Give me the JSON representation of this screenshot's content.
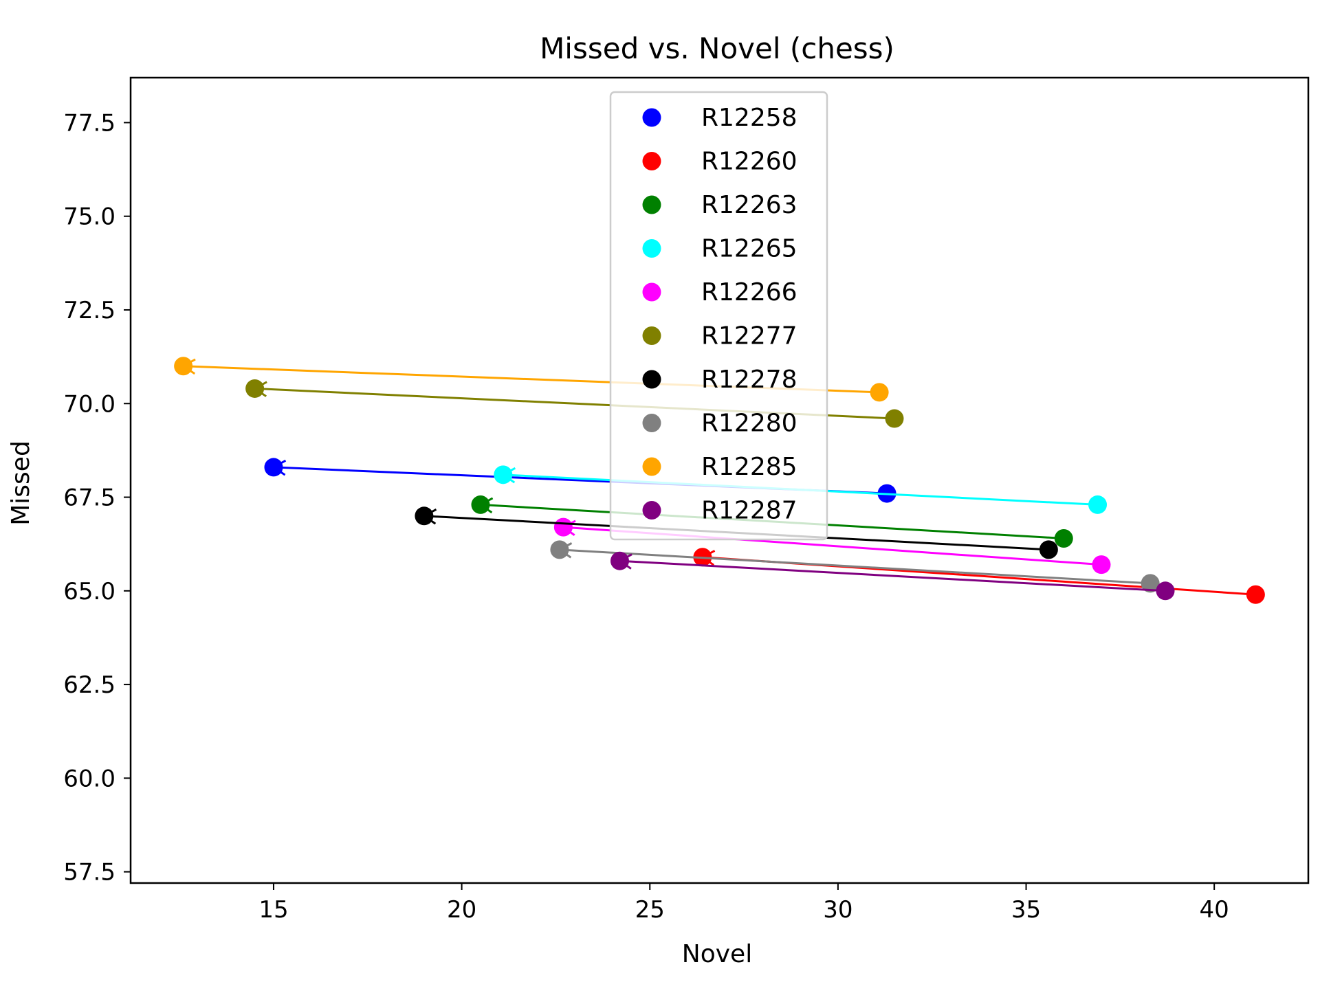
{
  "chart_data": {
    "type": "scatter",
    "title": "Missed vs. Novel (chess)",
    "xlabel": "Novel",
    "ylabel": "Missed",
    "xlim": [
      11.2,
      42.5
    ],
    "ylim": [
      57.2,
      78.7
    ],
    "x_ticks": [
      "15",
      "20",
      "25",
      "30",
      "35",
      "40"
    ],
    "y_ticks": [
      "57.5",
      "60.0",
      "62.5",
      "65.0",
      "67.5",
      "70.0",
      "72.5",
      "75.0",
      "77.5"
    ],
    "grid": false,
    "legend_position": "upper center",
    "series": [
      {
        "name": "R12258",
        "color": "#0000ff",
        "from": {
          "x": 31.3,
          "y": 67.6
        },
        "to": {
          "x": 15.0,
          "y": 68.3
        }
      },
      {
        "name": "R12260",
        "color": "#ff0000",
        "from": {
          "x": 41.1,
          "y": 64.9
        },
        "to": {
          "x": 26.4,
          "y": 65.9
        }
      },
      {
        "name": "R12263",
        "color": "#008000",
        "from": {
          "x": 36.0,
          "y": 66.4
        },
        "to": {
          "x": 20.5,
          "y": 67.3
        }
      },
      {
        "name": "R12265",
        "color": "#00ffff",
        "from": {
          "x": 36.9,
          "y": 67.3
        },
        "to": {
          "x": 21.1,
          "y": 68.1
        }
      },
      {
        "name": "R12266",
        "color": "#ff00ff",
        "from": {
          "x": 37.0,
          "y": 65.7
        },
        "to": {
          "x": 22.7,
          "y": 66.7
        }
      },
      {
        "name": "R12277",
        "color": "#808000",
        "from": {
          "x": 31.5,
          "y": 69.6
        },
        "to": {
          "x": 14.5,
          "y": 70.4
        }
      },
      {
        "name": "R12278",
        "color": "#000000",
        "from": {
          "x": 35.6,
          "y": 66.1
        },
        "to": {
          "x": 19.0,
          "y": 67.0
        }
      },
      {
        "name": "R12280",
        "color": "#808080",
        "from": {
          "x": 38.3,
          "y": 65.2
        },
        "to": {
          "x": 22.6,
          "y": 66.1
        }
      },
      {
        "name": "R12285",
        "color": "#ffa500",
        "from": {
          "x": 31.1,
          "y": 70.3
        },
        "to": {
          "x": 12.6,
          "y": 71.0
        }
      },
      {
        "name": "R12287",
        "color": "#800080",
        "from": {
          "x": 38.7,
          "y": 65.0
        },
        "to": {
          "x": 24.2,
          "y": 65.8
        }
      }
    ]
  }
}
